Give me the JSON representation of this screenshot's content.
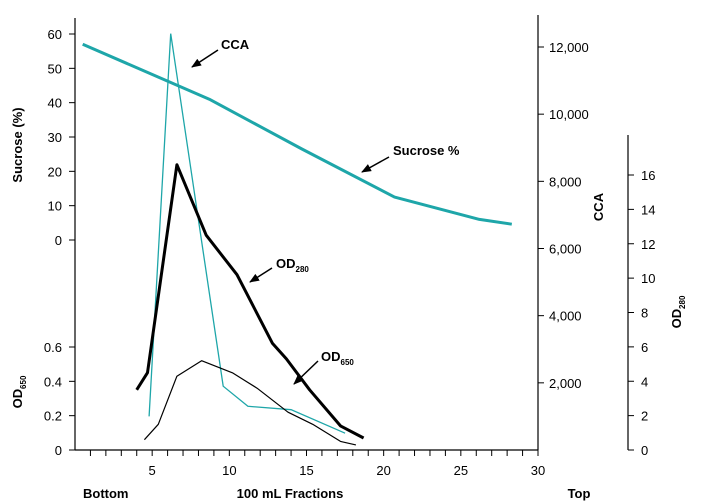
{
  "chart_data": {
    "type": "line",
    "x_axis": {
      "label": "100 mL Fractions",
      "left_label": "Bottom",
      "right_label": "Top",
      "range": [
        0,
        30
      ],
      "ticks": [
        5,
        10,
        15,
        20,
        25,
        30
      ]
    },
    "y_axes": {
      "sucrose": {
        "label": "Sucrose (%)",
        "range": [
          0,
          60
        ],
        "ticks": [
          0,
          10,
          20,
          30,
          40,
          50,
          60
        ]
      },
      "od650": {
        "label_main": "OD",
        "label_sub": "650",
        "range": [
          0,
          0.6
        ],
        "ticks": [
          "0",
          "0.2",
          "0.4",
          "0.6"
        ]
      },
      "cca": {
        "label": "CCA",
        "range": [
          0,
          12000
        ],
        "ticks": [
          "2,000",
          "4,000",
          "6,000",
          "8,000",
          "10,000",
          "12,000"
        ]
      },
      "od280": {
        "label_main": "OD",
        "label_sub": "280",
        "range": [
          0,
          16
        ],
        "ticks": [
          "0",
          "2",
          "4",
          "6",
          "8",
          "10",
          "12",
          "14",
          "16"
        ]
      }
    },
    "series": [
      {
        "name": "Sucrose %",
        "axis": "sucrose",
        "color": "#1ea6a9",
        "points": [
          [
            0.5,
            57
          ],
          [
            8.7,
            41
          ],
          [
            14.7,
            26.5
          ],
          [
            20.7,
            12.5
          ],
          [
            26.2,
            6
          ],
          [
            28.3,
            4.6
          ]
        ]
      },
      {
        "name": "CCA",
        "axis": "cca",
        "color": "#1ea6a9",
        "points": [
          [
            4.8,
            1000
          ],
          [
            6.2,
            12400
          ],
          [
            9.6,
            1900
          ],
          [
            11.2,
            1300
          ],
          [
            14.0,
            1200
          ],
          [
            17.5,
            500
          ]
        ]
      },
      {
        "name": "OD280",
        "axis": "od280",
        "color": "#000000",
        "points": [
          [
            4,
            3.5
          ],
          [
            4.7,
            4.5
          ],
          [
            6.6,
            16.6
          ],
          [
            8.5,
            12.5
          ],
          [
            10.5,
            10.2
          ],
          [
            12.8,
            6.2
          ],
          [
            13.7,
            5.3
          ],
          [
            15.2,
            3.5
          ],
          [
            17.2,
            1.4
          ],
          [
            18.7,
            0.7
          ]
        ]
      },
      {
        "name": "OD650",
        "axis": "od650",
        "color": "#000000",
        "points": [
          [
            4.5,
            0.06
          ],
          [
            5.4,
            0.15
          ],
          [
            6.6,
            0.43
          ],
          [
            8.2,
            0.52
          ],
          [
            10.2,
            0.45
          ],
          [
            11.8,
            0.36
          ],
          [
            13.8,
            0.22
          ],
          [
            15.4,
            0.15
          ],
          [
            17.2,
            0.05
          ],
          [
            18.2,
            0.03
          ]
        ]
      }
    ],
    "annotations": [
      {
        "text_main": "CCA",
        "text_sub": ""
      },
      {
        "text_main": "Sucrose %",
        "text_sub": ""
      },
      {
        "text_main": "OD",
        "text_sub": "280"
      },
      {
        "text_main": "OD",
        "text_sub": "650"
      }
    ]
  }
}
